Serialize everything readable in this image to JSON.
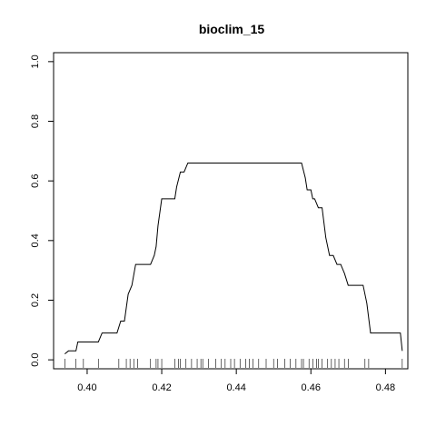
{
  "chart_data": {
    "type": "line",
    "title": "bioclim_15",
    "xlabel": "",
    "ylabel": "",
    "xlim": [
      0.391,
      0.486
    ],
    "ylim": [
      -0.03,
      1.03
    ],
    "x_ticks": [
      0.4,
      0.42,
      0.44,
      0.46,
      0.48
    ],
    "x_tick_labels": [
      "0.40",
      "0.42",
      "0.44",
      "0.46",
      "0.48"
    ],
    "y_ticks": [
      0.0,
      0.2,
      0.4,
      0.6,
      0.8,
      1.0
    ],
    "y_tick_labels": [
      "0.0",
      "0.2",
      "0.4",
      "0.6",
      "0.8",
      "1.0"
    ],
    "grid": false,
    "line_color": "#000000",
    "series": [
      {
        "x": [
          0.394,
          0.395,
          0.397,
          0.3975,
          0.403,
          0.404,
          0.408,
          0.409,
          0.41,
          0.411,
          0.412,
          0.413,
          0.417,
          0.418,
          0.4185,
          0.419,
          0.42,
          0.4235,
          0.424,
          0.425,
          0.426,
          0.427,
          0.4575,
          0.4585,
          0.459,
          0.46,
          0.4605,
          0.461,
          0.462,
          0.463,
          0.464,
          0.465,
          0.466,
          0.467,
          0.4675,
          0.468,
          0.469,
          0.47,
          0.471,
          0.474,
          0.475,
          0.476,
          0.477,
          0.484,
          0.4845
        ],
        "y": [
          0.02,
          0.03,
          0.03,
          0.06,
          0.06,
          0.09,
          0.09,
          0.13,
          0.13,
          0.22,
          0.25,
          0.32,
          0.32,
          0.35,
          0.38,
          0.45,
          0.54,
          0.54,
          0.58,
          0.63,
          0.63,
          0.66,
          0.66,
          0.61,
          0.57,
          0.57,
          0.54,
          0.54,
          0.51,
          0.51,
          0.41,
          0.35,
          0.35,
          0.32,
          0.32,
          0.32,
          0.29,
          0.25,
          0.25,
          0.25,
          0.19,
          0.09,
          0.09,
          0.09,
          0.03
        ]
      }
    ],
    "rug": [
      0.394,
      0.397,
      0.399,
      0.403,
      0.4085,
      0.4105,
      0.4115,
      0.4125,
      0.4135,
      0.417,
      0.4185,
      0.419,
      0.42,
      0.4235,
      0.4245,
      0.425,
      0.4265,
      0.428,
      0.4295,
      0.4305,
      0.431,
      0.4325,
      0.4345,
      0.436,
      0.437,
      0.4385,
      0.4395,
      0.441,
      0.4425,
      0.4435,
      0.4445,
      0.446,
      0.448,
      0.45,
      0.451,
      0.453,
      0.4545,
      0.456,
      0.4575,
      0.458,
      0.4595,
      0.4605,
      0.4615,
      0.462,
      0.463,
      0.4645,
      0.4655,
      0.4665,
      0.4675,
      0.469,
      0.47,
      0.4745,
      0.4755,
      0.4845
    ]
  }
}
